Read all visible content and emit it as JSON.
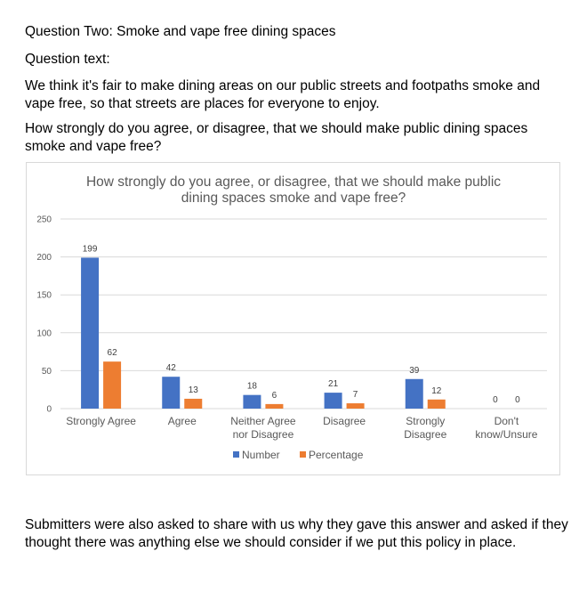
{
  "intro": {
    "heading": "Question Two: Smoke and vape free dining spaces",
    "question_label": "Question text:",
    "statement": "We think it's fair to make dining areas on our public streets and footpaths smoke and vape free, so that streets are places for everyone to enjoy.",
    "question": "How strongly do you agree, or disagree, that we should make public dining spaces smoke and vape free?"
  },
  "footer": {
    "text": "Submitters were also asked to share with us why they gave this answer and asked if they thought there was anything else we should consider if we put this policy in place."
  },
  "colors": {
    "number": "#4472C4",
    "percentage": "#ED7D31",
    "grid": "#d9d9d9",
    "text": "#595959"
  },
  "chart_data": {
    "type": "bar",
    "title_lines": [
      "How strongly do you agree, or disagree, that we should make public",
      "dining spaces smoke and vape free?"
    ],
    "categories": [
      [
        "Strongly Agree"
      ],
      [
        "Agree"
      ],
      [
        "Neither Agree",
        "nor Disagree"
      ],
      [
        "Disagree"
      ],
      [
        "Strongly",
        "Disagree"
      ],
      [
        "Don't",
        "know/Unsure"
      ]
    ],
    "series": [
      {
        "name": "Number",
        "values": [
          199,
          42,
          18,
          21,
          39,
          0
        ]
      },
      {
        "name": "Percentage",
        "values": [
          62,
          13,
          6,
          7,
          12,
          0
        ]
      }
    ],
    "yticks": [
      0,
      50,
      100,
      150,
      200,
      250
    ],
    "ylim": [
      0,
      250
    ],
    "grid": true,
    "legend": "bottom"
  }
}
